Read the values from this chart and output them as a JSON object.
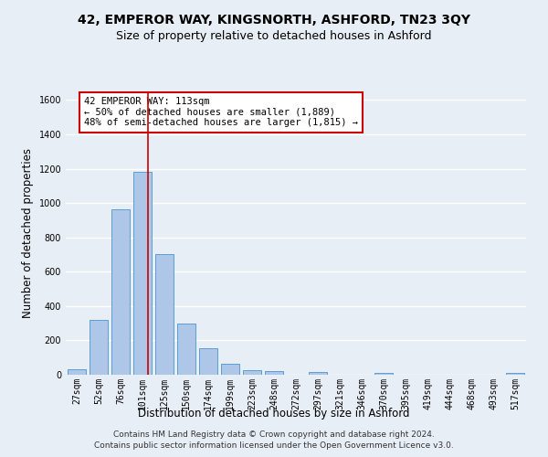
{
  "title": "42, EMPEROR WAY, KINGSNORTH, ASHFORD, TN23 3QY",
  "subtitle": "Size of property relative to detached houses in Ashford",
  "xlabel": "Distribution of detached houses by size in Ashford",
  "ylabel": "Number of detached properties",
  "footer_line1": "Contains HM Land Registry data © Crown copyright and database right 2024.",
  "footer_line2": "Contains public sector information licensed under the Open Government Licence v3.0.",
  "categories": [
    "27sqm",
    "52sqm",
    "76sqm",
    "101sqm",
    "125sqm",
    "150sqm",
    "174sqm",
    "199sqm",
    "223sqm",
    "248sqm",
    "272sqm",
    "297sqm",
    "321sqm",
    "346sqm",
    "370sqm",
    "395sqm",
    "419sqm",
    "444sqm",
    "468sqm",
    "493sqm",
    "517sqm"
  ],
  "values": [
    30,
    320,
    965,
    1180,
    700,
    300,
    155,
    65,
    28,
    20,
    0,
    18,
    0,
    0,
    12,
    0,
    0,
    0,
    0,
    0,
    12
  ],
  "bar_color": "#aec6e8",
  "bar_edge_color": "#5a9fd4",
  "background_color": "#e8eef5",
  "grid_color": "#ffffff",
  "annotation_line1": "42 EMPEROR WAY: 113sqm",
  "annotation_line2": "← 50% of detached houses are smaller (1,889)",
  "annotation_line3": "48% of semi-detached houses are larger (1,815) →",
  "annotation_box_color": "#ffffff",
  "annotation_box_edge_color": "#cc0000",
  "vline_x": 3.25,
  "vline_color": "#cc0000",
  "ylim": [
    0,
    1650
  ],
  "yticks": [
    0,
    200,
    400,
    600,
    800,
    1000,
    1200,
    1400,
    1600
  ],
  "title_fontsize": 10,
  "subtitle_fontsize": 9,
  "xlabel_fontsize": 8.5,
  "ylabel_fontsize": 8.5,
  "tick_fontsize": 7,
  "footer_fontsize": 6.5,
  "annotation_fontsize": 7.5
}
